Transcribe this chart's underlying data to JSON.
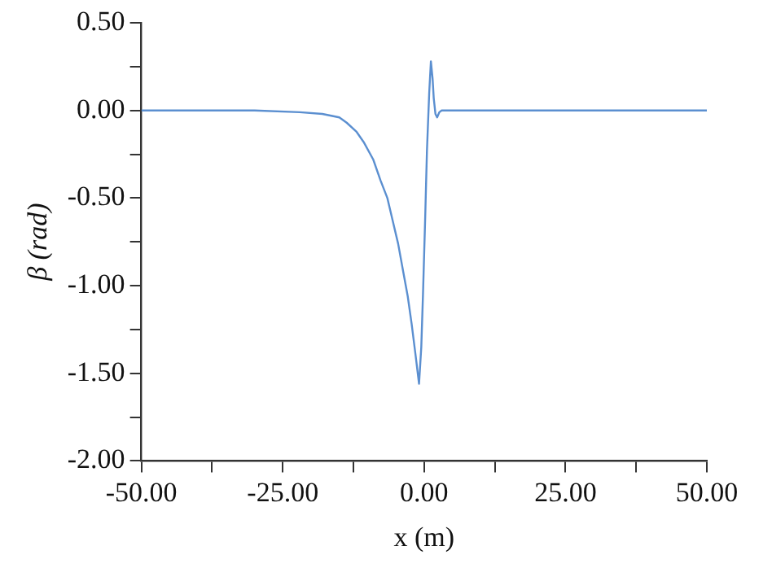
{
  "chart_data": {
    "type": "line",
    "xlabel": "x (m)",
    "ylabel": "β (rad)",
    "xlim": [
      -50,
      50
    ],
    "xticks": [
      {
        "value": -50,
        "label": "-50.00"
      },
      {
        "value": -37.5,
        "label": null
      },
      {
        "value": -25,
        "label": "-25.00"
      },
      {
        "value": -12.5,
        "label": null
      },
      {
        "value": 0,
        "label": "0.00"
      },
      {
        "value": 12.5,
        "label": null
      },
      {
        "value": 25,
        "label": "25.00"
      },
      {
        "value": 37.5,
        "label": null
      },
      {
        "value": 50,
        "label": "50.00"
      }
    ],
    "ylim": [
      -2,
      0.5
    ],
    "yticks": [
      {
        "value": -2,
        "label": "-2.00"
      },
      {
        "value": -1.75,
        "label": null
      },
      {
        "value": -1.5,
        "label": "-1.50"
      },
      {
        "value": -1.25,
        "label": null
      },
      {
        "value": -1,
        "label": "-1.00"
      },
      {
        "value": -0.75,
        "label": null
      },
      {
        "value": -0.5,
        "label": "-0.50"
      },
      {
        "value": -0.25,
        "label": null
      },
      {
        "value": 0,
        "label": "0.00"
      },
      {
        "value": 0.25,
        "label": null
      },
      {
        "value": 0.5,
        "label": "0.50"
      }
    ],
    "grid": false,
    "legend": false,
    "marker": "none",
    "line_style": "solid",
    "series": [
      {
        "color": "#5b8fd0",
        "x": [
          -50,
          -30,
          -22,
          -18,
          -15,
          -13.7,
          -12,
          -10.7,
          -9,
          -7.7,
          -6.5,
          -5.7,
          -4.6,
          -3.7,
          -2.9,
          -2.2,
          -1.5,
          -0.9,
          -0.5,
          -0.2,
          0.2,
          0.5,
          0.9,
          1.2,
          1.5,
          1.7,
          2,
          2.3,
          2.7,
          3.1,
          5,
          50
        ],
        "values": [
          0,
          0,
          -0.01,
          -0.02,
          -0.04,
          -0.07,
          -0.12,
          -0.18,
          -0.28,
          -0.4,
          -0.5,
          -0.61,
          -0.76,
          -0.92,
          -1.06,
          -1.22,
          -1.4,
          -1.56,
          -1.35,
          -1.05,
          -0.6,
          -0.23,
          0.1,
          0.28,
          0.18,
          0.07,
          -0.02,
          -0.04,
          -0.01,
          0,
          0,
          0
        ]
      }
    ]
  }
}
